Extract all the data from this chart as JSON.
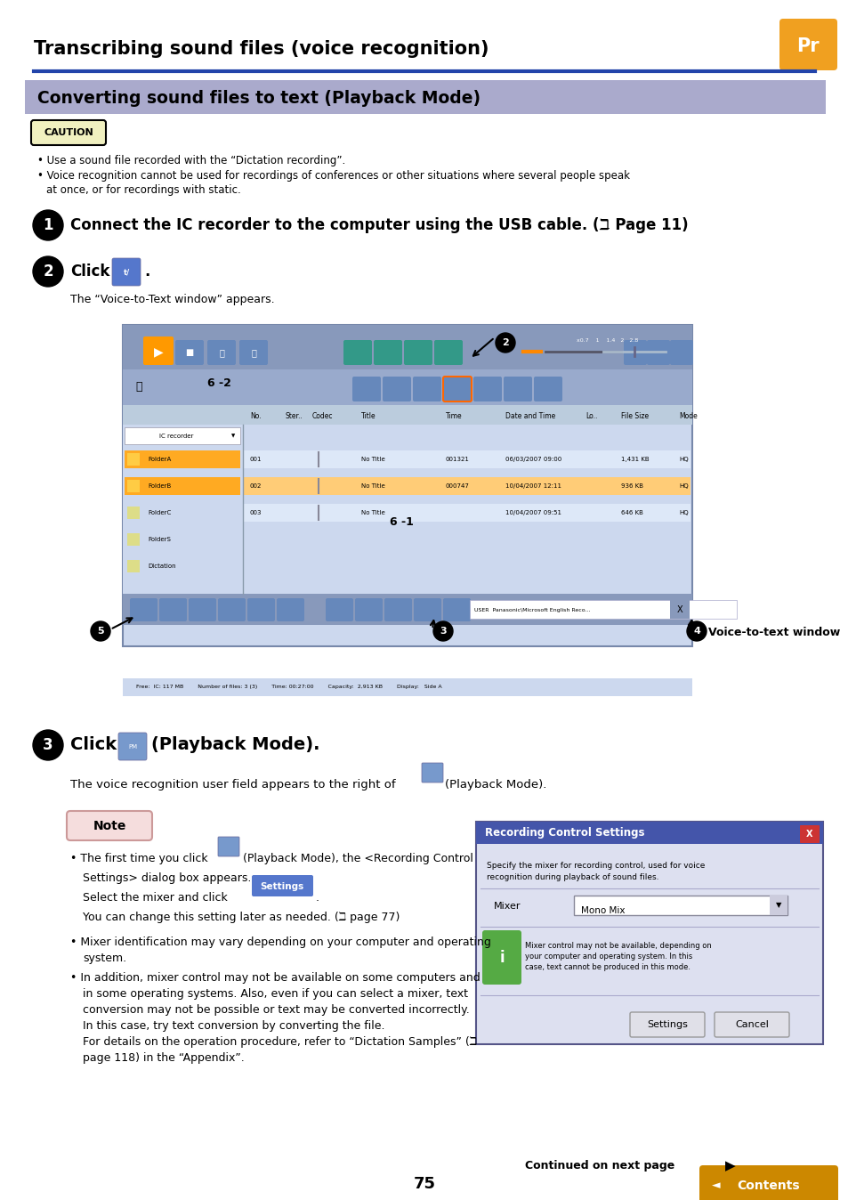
{
  "bg_color": "#ffffff",
  "top_title": "Transcribing sound files (voice recognition)",
  "section_title": "Converting sound files to text (Playback Mode)",
  "caution_text": "CAUTION",
  "bullet1": "Use a sound file recorded with the “Dictation recording”.",
  "bullet2": "Voice recognition cannot be used for recordings of conferences or other situations where several people speak",
  "bullet2b": "at once, or for recordings with static.",
  "step1_text": "Connect the IC recorder to the computer using the USB cable. (ℶ Page 11)",
  "step2_sub": "The “Voice-to-Text window” appears.",
  "step3_sub": "The voice recognition user field appears to the right of",
  "step3_sub2": "(Playback Mode).",
  "note_bullet1a": "The first time you click",
  "note_bullet1b": "(Playback Mode), the <Recording Control",
  "note_bullet1c": "Settings> dialog box appears.",
  "note_bullet1d": "Select the mixer and click",
  "note_bullet1f": "You can change this setting later as needed. (ℶ page 77)",
  "note_bullet2": "Mixer identification may vary depending on your computer and operating",
  "note_bullet2b": "system.",
  "note_bullet3a": "In addition, mixer control may not be available on some computers and",
  "note_bullet3b": "in some operating systems. Also, even if you can select a mixer, text",
  "note_bullet3c": "conversion may not be possible or text may be converted incorrectly.",
  "note_bullet3d": "In this case, try text conversion by converting the file.",
  "note_bullet3e": "For details on the operation procedure, refer to “Dictation Samples” (ℶ",
  "note_bullet3f": "page 118) in the “Appendix”.",
  "footer_page": "75",
  "footer_contents": "Contents",
  "continued_text": "Continued on next page"
}
